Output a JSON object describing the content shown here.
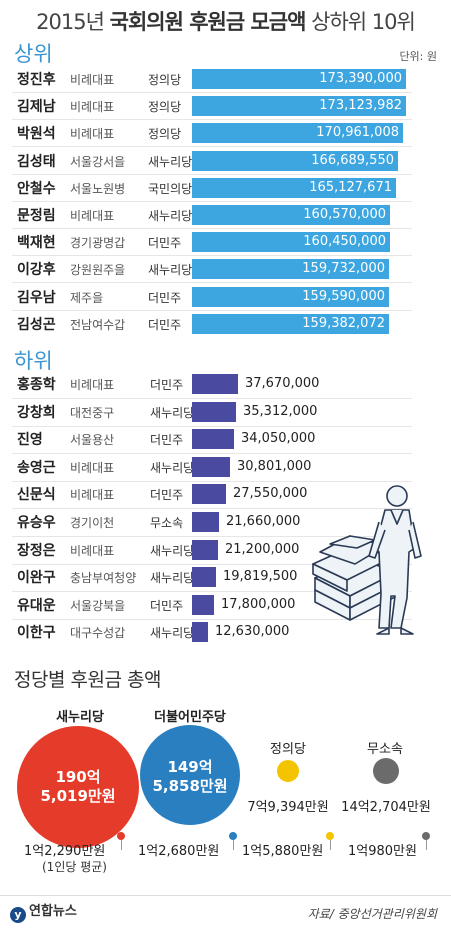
{
  "title_light": "2015년 ",
  "title_bold": "국회의원 후원금 모금액",
  "title_tail": " 상하위 10위",
  "unit": "단위: 원",
  "top_label": "상위",
  "bottom_label": "하위",
  "colors": {
    "top_bar": "#3da6e0",
    "bottom_bar": "#4a4aa0",
    "saenuri": "#e53b2b",
    "minju": "#2a7fc1",
    "jeongui": "#f5c400",
    "independent": "#6b6b6b"
  },
  "chart_data": [
    {
      "type": "bar",
      "section": "상위",
      "xlim": [
        0,
        180000000
      ],
      "rows": [
        {
          "name": "정진후",
          "district": "비례대표",
          "party": "정의당",
          "value": 173390000,
          "label": "173,390,000"
        },
        {
          "name": "김제남",
          "district": "비례대표",
          "party": "정의당",
          "value": 173123982,
          "label": "173,123,982"
        },
        {
          "name": "박원석",
          "district": "비례대표",
          "party": "정의당",
          "value": 170961008,
          "label": "170,961,008"
        },
        {
          "name": "김성태",
          "district": "서울강서을",
          "party": "새누리당",
          "value": 166689550,
          "label": "166,689,550"
        },
        {
          "name": "안철수",
          "district": "서울노원병",
          "party": "국민의당",
          "value": 165127671,
          "label": "165,127,671"
        },
        {
          "name": "문정림",
          "district": "비례대표",
          "party": "새누리당",
          "value": 160570000,
          "label": "160,570,000"
        },
        {
          "name": "백재현",
          "district": "경기광명갑",
          "party": "더민주",
          "value": 160450000,
          "label": "160,450,000"
        },
        {
          "name": "이강후",
          "district": "강원원주을",
          "party": "새누리당",
          "value": 159732000,
          "label": "159,732,000"
        },
        {
          "name": "김우남",
          "district": "제주을",
          "party": "더민주",
          "value": 159590000,
          "label": "159,590,000"
        },
        {
          "name": "김성곤",
          "district": "전남여수갑",
          "party": "더민주",
          "value": 159382072,
          "label": "159,382,072"
        }
      ]
    },
    {
      "type": "bar",
      "section": "하위",
      "xlim": [
        0,
        180000000
      ],
      "rows": [
        {
          "name": "홍종학",
          "district": "비례대표",
          "party": "더민주",
          "value": 37670000,
          "label": "37,670,000"
        },
        {
          "name": "강창희",
          "district": "대전중구",
          "party": "새누리당",
          "value": 35312000,
          "label": "35,312,000"
        },
        {
          "name": "진영",
          "district": "서울용산",
          "party": "더민주",
          "value": 34050000,
          "label": "34,050,000"
        },
        {
          "name": "송영근",
          "district": "비례대표",
          "party": "새누리당",
          "value": 30801000,
          "label": "30,801,000"
        },
        {
          "name": "신문식",
          "district": "비례대표",
          "party": "더민주",
          "value": 27550000,
          "label": "27,550,000"
        },
        {
          "name": "유승우",
          "district": "경기이천",
          "party": "무소속",
          "value": 21660000,
          "label": "21,660,000"
        },
        {
          "name": "장정은",
          "district": "비례대표",
          "party": "새누리당",
          "value": 21200000,
          "label": "21,200,000"
        },
        {
          "name": "이완구",
          "district": "충남부여청양",
          "party": "새누리당",
          "value": 19819500,
          "label": "19,819,500"
        },
        {
          "name": "유대운",
          "district": "서울강북을",
          "party": "더민주",
          "value": 17800000,
          "label": "17,800,000"
        },
        {
          "name": "이한구",
          "district": "대구수성갑",
          "party": "새누리당",
          "value": 12630000,
          "label": "12,630,000"
        }
      ]
    }
  ],
  "party_totals": {
    "title": "정당별 후원금 총액",
    "parties": [
      {
        "name": "새누리당",
        "total_line1": "190억",
        "total_line2": "5,019만원",
        "avg": "1억2,290만원",
        "color": "#e53b2b"
      },
      {
        "name": "더불어민주당",
        "total_line1": "149억",
        "total_line2": "5,858만원",
        "avg": "1억2,680만원",
        "color": "#2a7fc1"
      },
      {
        "name": "정의당",
        "total": "7억9,394만원",
        "avg": "1억5,880만원",
        "color": "#f5c400"
      },
      {
        "name": "무소속",
        "total": "14억2,704만원",
        "avg": "1억980만원",
        "color": "#6b6b6b"
      }
    ],
    "avg_note": "(1인당 평균)"
  },
  "footer": {
    "logo": "연합뉴스",
    "logo_mark": "y",
    "source": "자료/ 중앙선거관리위원회"
  }
}
